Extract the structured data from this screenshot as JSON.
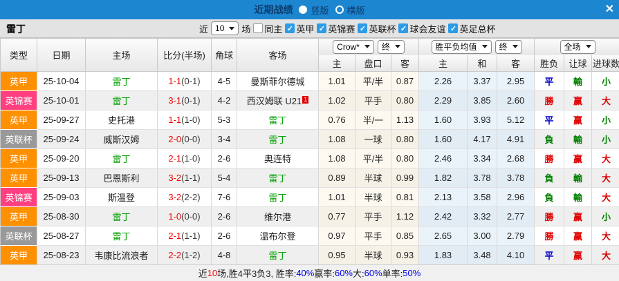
{
  "colors": {
    "accent_blue": "#1c86d1",
    "title_text": "#0d3d6e",
    "league_orange": "#ff9000",
    "league_pink": "#ff3f80",
    "league_gray": "#999999",
    "team_green": "#00a000",
    "win_red": "#e00000",
    "lose_green": "#008000",
    "draw_blue": "#0000cc",
    "checkbox_blue": "#2b9ce8"
  },
  "titlebar": {
    "title": "近期战绩",
    "view_options": [
      {
        "label": "竖版",
        "selected": true
      },
      {
        "label": "横版",
        "selected": false
      }
    ],
    "close_label": "✕"
  },
  "filterbar": {
    "team": "雷丁",
    "near_label": "近",
    "matches_select": "10",
    "matches_label": "场",
    "same_home": {
      "label": "同主",
      "checked": false
    },
    "leagues": [
      {
        "label": "英甲",
        "checked": true
      },
      {
        "label": "英锦赛",
        "checked": true
      },
      {
        "label": "英联杯",
        "checked": true
      },
      {
        "label": "球会友谊",
        "checked": true
      },
      {
        "label": "英足总杯",
        "checked": true
      }
    ]
  },
  "table": {
    "left_headers": [
      "类型",
      "日期",
      "主场",
      "比分(半场)",
      "角球",
      "客场"
    ],
    "group_selects": {
      "bookmaker": "Crow*",
      "ah_stage": "终",
      "europe": "胜平负均值",
      "eu_stage": "终",
      "scope": "全场"
    },
    "sub_headers": [
      "主",
      "盘口",
      "客",
      "主",
      "和",
      "客",
      "胜负",
      "让球",
      "进球数"
    ],
    "rows": [
      {
        "league": "英甲",
        "league_type": "orange",
        "date": "25-10-04",
        "home": "雷丁",
        "home_is_team": true,
        "score_ft": "1-1",
        "score_ht": "(0-1)",
        "corners": "4-5",
        "away": "曼斯菲尔德城",
        "away_is_team": false,
        "away_badge": "",
        "ah": [
          "1.01",
          "平/半",
          "0.87"
        ],
        "eu": [
          "2.26",
          "3.37",
          "2.95"
        ],
        "results": [
          {
            "text": "平",
            "c": "b"
          },
          {
            "text": "輸",
            "c": "g"
          },
          {
            "text": "小",
            "c": "g"
          }
        ]
      },
      {
        "league": "英锦赛",
        "league_type": "pink",
        "date": "25-10-01",
        "home": "雷丁",
        "home_is_team": true,
        "score_ft": "3-1",
        "score_ht": "(0-1)",
        "corners": "4-2",
        "away": "西汉姆联 U21",
        "away_is_team": false,
        "away_badge": "1",
        "ah": [
          "1.02",
          "平手",
          "0.80"
        ],
        "eu": [
          "2.29",
          "3.85",
          "2.60"
        ],
        "results": [
          {
            "text": "勝",
            "c": "r"
          },
          {
            "text": "赢",
            "c": "r"
          },
          {
            "text": "大",
            "c": "r"
          }
        ]
      },
      {
        "league": "英甲",
        "league_type": "orange",
        "date": "25-09-27",
        "home": "史托港",
        "home_is_team": false,
        "score_ft": "1-1",
        "score_ht": "(1-0)",
        "corners": "5-3",
        "away": "雷丁",
        "away_is_team": true,
        "away_badge": "",
        "ah": [
          "0.76",
          "半/一",
          "1.13"
        ],
        "eu": [
          "1.60",
          "3.93",
          "5.12"
        ],
        "results": [
          {
            "text": "平",
            "c": "b"
          },
          {
            "text": "赢",
            "c": "r"
          },
          {
            "text": "小",
            "c": "g"
          }
        ]
      },
      {
        "league": "英联杯",
        "league_type": "gray",
        "date": "25-09-24",
        "home": "威斯汉姆",
        "home_is_team": false,
        "score_ft": "2-0",
        "score_ht": "(0-0)",
        "corners": "3-4",
        "away": "雷丁",
        "away_is_team": true,
        "away_badge": "",
        "ah": [
          "1.08",
          "一球",
          "0.80"
        ],
        "eu": [
          "1.60",
          "4.17",
          "4.91"
        ],
        "results": [
          {
            "text": "負",
            "c": "g"
          },
          {
            "text": "輸",
            "c": "g"
          },
          {
            "text": "小",
            "c": "g"
          }
        ]
      },
      {
        "league": "英甲",
        "league_type": "orange",
        "date": "25-09-20",
        "home": "雷丁",
        "home_is_team": true,
        "score_ft": "2-1",
        "score_ht": "(1-0)",
        "corners": "2-6",
        "away": "奥连特",
        "away_is_team": false,
        "away_badge": "",
        "ah": [
          "1.08",
          "平/半",
          "0.80"
        ],
        "eu": [
          "2.46",
          "3.34",
          "2.68"
        ],
        "results": [
          {
            "text": "勝",
            "c": "r"
          },
          {
            "text": "赢",
            "c": "r"
          },
          {
            "text": "大",
            "c": "r"
          }
        ]
      },
      {
        "league": "英甲",
        "league_type": "orange",
        "date": "25-09-13",
        "home": "巴恩斯利",
        "home_is_team": false,
        "score_ft": "3-2",
        "score_ht": "(1-1)",
        "corners": "5-4",
        "away": "雷丁",
        "away_is_team": true,
        "away_badge": "",
        "ah": [
          "0.89",
          "半球",
          "0.99"
        ],
        "eu": [
          "1.82",
          "3.78",
          "3.78"
        ],
        "results": [
          {
            "text": "負",
            "c": "g"
          },
          {
            "text": "輸",
            "c": "g"
          },
          {
            "text": "大",
            "c": "r"
          }
        ]
      },
      {
        "league": "英锦赛",
        "league_type": "pink",
        "date": "25-09-03",
        "home": "斯温登",
        "home_is_team": false,
        "score_ft": "3-2",
        "score_ht": "(2-2)",
        "corners": "7-6",
        "away": "雷丁",
        "away_is_team": true,
        "away_badge": "",
        "ah": [
          "1.01",
          "半球",
          "0.81"
        ],
        "eu": [
          "2.13",
          "3.58",
          "2.96"
        ],
        "results": [
          {
            "text": "負",
            "c": "g"
          },
          {
            "text": "輸",
            "c": "g"
          },
          {
            "text": "大",
            "c": "r"
          }
        ]
      },
      {
        "league": "英甲",
        "league_type": "orange",
        "date": "25-08-30",
        "home": "雷丁",
        "home_is_team": true,
        "score_ft": "1-0",
        "score_ht": "(0-0)",
        "corners": "2-6",
        "away": "维尔港",
        "away_is_team": false,
        "away_badge": "",
        "ah": [
          "0.77",
          "平手",
          "1.12"
        ],
        "eu": [
          "2.42",
          "3.32",
          "2.77"
        ],
        "results": [
          {
            "text": "勝",
            "c": "r"
          },
          {
            "text": "赢",
            "c": "r"
          },
          {
            "text": "小",
            "c": "g"
          }
        ]
      },
      {
        "league": "英联杯",
        "league_type": "gray",
        "date": "25-08-27",
        "home": "雷丁",
        "home_is_team": true,
        "score_ft": "2-1",
        "score_ht": "(1-1)",
        "corners": "2-6",
        "away": "温布尔登",
        "away_is_team": false,
        "away_badge": "",
        "ah": [
          "0.97",
          "平手",
          "0.85"
        ],
        "eu": [
          "2.65",
          "3.00",
          "2.79"
        ],
        "results": [
          {
            "text": "勝",
            "c": "r"
          },
          {
            "text": "赢",
            "c": "r"
          },
          {
            "text": "大",
            "c": "r"
          }
        ]
      },
      {
        "league": "英甲",
        "league_type": "orange",
        "date": "25-08-23",
        "home": "韦康比流浪者",
        "home_is_team": false,
        "score_ft": "2-2",
        "score_ht": "(1-2)",
        "corners": "4-8",
        "away": "雷丁",
        "away_is_team": true,
        "away_badge": "",
        "ah": [
          "0.95",
          "半球",
          "0.93"
        ],
        "eu": [
          "1.83",
          "3.48",
          "4.10"
        ],
        "results": [
          {
            "text": "平",
            "c": "b"
          },
          {
            "text": "赢",
            "c": "r"
          },
          {
            "text": "大",
            "c": "r"
          }
        ]
      }
    ]
  },
  "footer": {
    "segments": [
      {
        "t": "近",
        "c": "k"
      },
      {
        "t": "10",
        "c": "r"
      },
      {
        "t": "场,胜4平3负3, 胜率:",
        "c": "k"
      },
      {
        "t": "40%",
        "c": "b"
      },
      {
        "t": " 赢率:",
        "c": "k"
      },
      {
        "t": "60%",
        "c": "b"
      },
      {
        "t": " 大:",
        "c": "k"
      },
      {
        "t": "60%",
        "c": "b"
      },
      {
        "t": " 单率:",
        "c": "k"
      },
      {
        "t": "50%",
        "c": "b"
      }
    ]
  }
}
